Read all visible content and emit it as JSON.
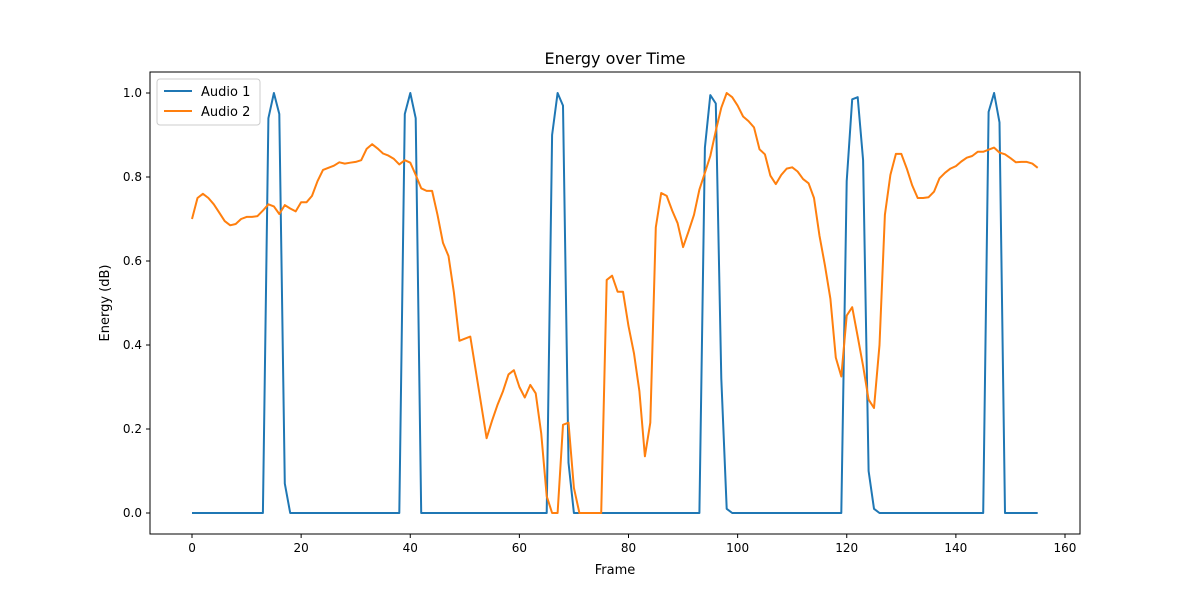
{
  "chart_data": {
    "type": "line",
    "title": "Energy over Time",
    "xlabel": "Frame",
    "ylabel": "Energy (dB)",
    "xlim": [
      -7.7,
      162.75
    ],
    "ylim": [
      -0.05,
      1.05
    ],
    "xticks": [
      0,
      20,
      40,
      60,
      80,
      100,
      120,
      140,
      160
    ],
    "yticks": [
      0.0,
      0.2,
      0.4,
      0.6,
      0.8,
      1.0
    ],
    "grid": false,
    "legend_position": "top-left",
    "series": [
      {
        "name": "Audio 1",
        "color": "#1f77b4",
        "values": [
          0,
          0,
          0,
          0,
          0,
          0,
          0,
          0,
          0,
          0,
          0,
          0,
          0,
          0,
          0.94,
          1.0,
          0.95,
          0.07,
          0,
          0,
          0,
          0,
          0,
          0,
          0,
          0,
          0,
          0,
          0,
          0,
          0,
          0,
          0,
          0,
          0,
          0,
          0,
          0,
          0,
          0.95,
          1.0,
          0.94,
          0,
          0,
          0,
          0,
          0,
          0,
          0,
          0,
          0,
          0,
          0,
          0,
          0,
          0,
          0,
          0,
          0,
          0,
          0,
          0,
          0,
          0,
          0,
          0,
          0.9,
          1.0,
          0.97,
          0.12,
          0,
          0,
          0,
          0,
          0,
          0,
          0,
          0,
          0,
          0,
          0,
          0,
          0,
          0,
          0,
          0,
          0,
          0,
          0,
          0,
          0,
          0,
          0,
          0,
          0.87,
          0.995,
          0.975,
          0.32,
          0.01,
          0,
          0,
          0,
          0,
          0,
          0,
          0,
          0,
          0,
          0,
          0,
          0,
          0,
          0,
          0,
          0,
          0,
          0,
          0,
          0,
          0,
          0.79,
          0.985,
          0.99,
          0.84,
          0.1,
          0.01,
          0,
          0,
          0,
          0,
          0,
          0,
          0,
          0,
          0,
          0,
          0,
          0,
          0,
          0,
          0,
          0,
          0,
          0,
          0,
          0,
          0.955,
          1.0,
          0.93,
          0,
          0,
          0,
          0,
          0,
          0,
          0
        ]
      },
      {
        "name": "Audio 2",
        "color": "#ff7f0e",
        "values": [
          0.7,
          0.75,
          0.76,
          0.75,
          0.735,
          0.715,
          0.695,
          0.685,
          0.688,
          0.7,
          0.705,
          0.705,
          0.707,
          0.72,
          0.735,
          0.73,
          0.712,
          0.733,
          0.725,
          0.718,
          0.74,
          0.74,
          0.755,
          0.79,
          0.817,
          0.822,
          0.827,
          0.835,
          0.832,
          0.834,
          0.836,
          0.84,
          0.867,
          0.878,
          0.868,
          0.856,
          0.851,
          0.843,
          0.83,
          0.84,
          0.834,
          0.805,
          0.773,
          0.767,
          0.767,
          0.71,
          0.643,
          0.612,
          0.525,
          0.41,
          0.415,
          0.42,
          0.34,
          0.258,
          0.178,
          0.22,
          0.258,
          0.29,
          0.33,
          0.34,
          0.3,
          0.275,
          0.305,
          0.285,
          0.19,
          0.04,
          0,
          0,
          0.21,
          0.215,
          0.06,
          0,
          0,
          0,
          0,
          0,
          0.555,
          0.565,
          0.527,
          0.527,
          0.445,
          0.38,
          0.29,
          0.135,
          0.215,
          0.68,
          0.762,
          0.755,
          0.72,
          0.69,
          0.633,
          0.67,
          0.71,
          0.77,
          0.81,
          0.85,
          0.91,
          0.965,
          1.0,
          0.99,
          0.97,
          0.944,
          0.933,
          0.918,
          0.866,
          0.854,
          0.803,
          0.783,
          0.805,
          0.82,
          0.823,
          0.813,
          0.795,
          0.785,
          0.75,
          0.66,
          0.59,
          0.51,
          0.37,
          0.325,
          0.47,
          0.49,
          0.42,
          0.35,
          0.27,
          0.25,
          0.4,
          0.71,
          0.805,
          0.855,
          0.855,
          0.82,
          0.78,
          0.75,
          0.75,
          0.752,
          0.765,
          0.797,
          0.81,
          0.82,
          0.826,
          0.837,
          0.846,
          0.85,
          0.86,
          0.86,
          0.865,
          0.87,
          0.858,
          0.854,
          0.845,
          0.835,
          0.836,
          0.836,
          0.832,
          0.822
        ]
      }
    ]
  }
}
